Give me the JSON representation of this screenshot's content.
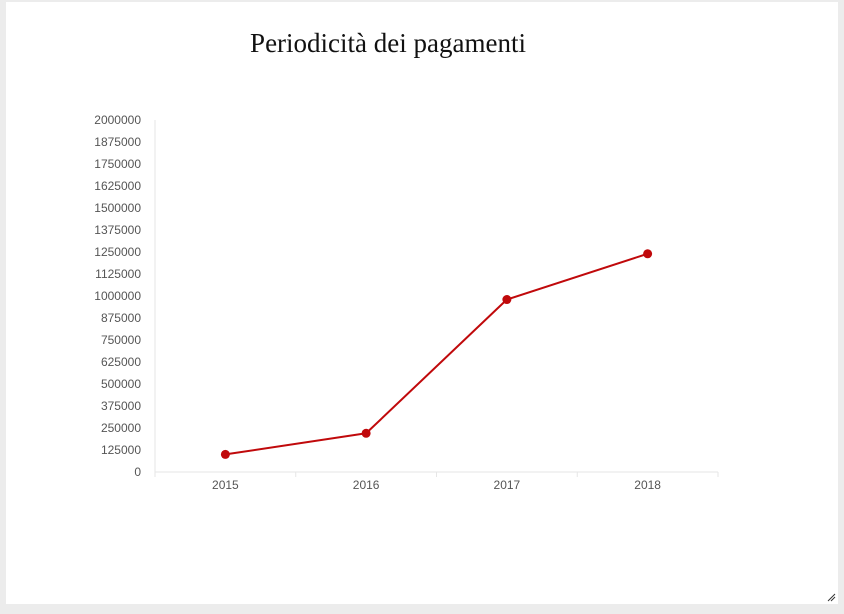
{
  "chart_data": {
    "type": "line",
    "title": "Periodicità dei pagamenti",
    "categories": [
      "2015",
      "2016",
      "2017",
      "2018"
    ],
    "series": [
      {
        "values": [
          100000,
          220000,
          980000,
          1240000
        ],
        "color": "#c0090b"
      }
    ],
    "ylim": [
      0,
      2000000
    ],
    "yticks": [
      "0",
      "125000",
      "250000",
      "375000",
      "500000",
      "625000",
      "750000",
      "875000",
      "1000000",
      "1125000",
      "1250000",
      "1375000",
      "1500000",
      "1625000",
      "1750000",
      "1875000",
      "2000000"
    ],
    "grid": false,
    "xlabel": "",
    "ylabel": ""
  }
}
